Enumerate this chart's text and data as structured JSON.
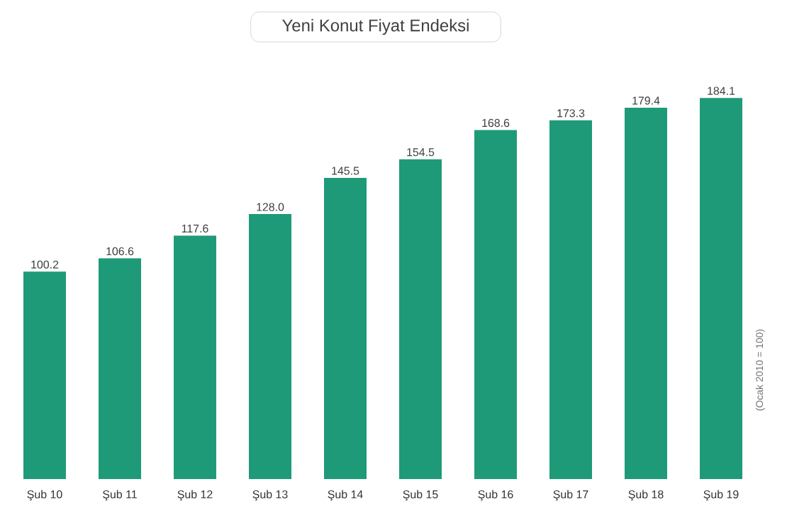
{
  "chart_data": {
    "type": "bar",
    "title": "Yeni Konut Fiyat Endeksi",
    "ylabel": "(Ocak 2010 = 100)",
    "categories": [
      "Şub 10",
      "Şub 11",
      "Şub 12",
      "Şub 13",
      "Şub 14",
      "Şub 15",
      "Şub 16",
      "Şub 17",
      "Şub 18",
      "Şub 19"
    ],
    "values": [
      100.2,
      106.6,
      117.6,
      128.0,
      145.5,
      154.5,
      168.6,
      173.3,
      179.4,
      184.1
    ],
    "value_labels": [
      "100.2",
      "106.6",
      "117.6",
      "128.0",
      "145.5",
      "154.5",
      "168.6",
      "173.3",
      "179.4",
      "184.1"
    ],
    "color": "#1f9a78"
  }
}
